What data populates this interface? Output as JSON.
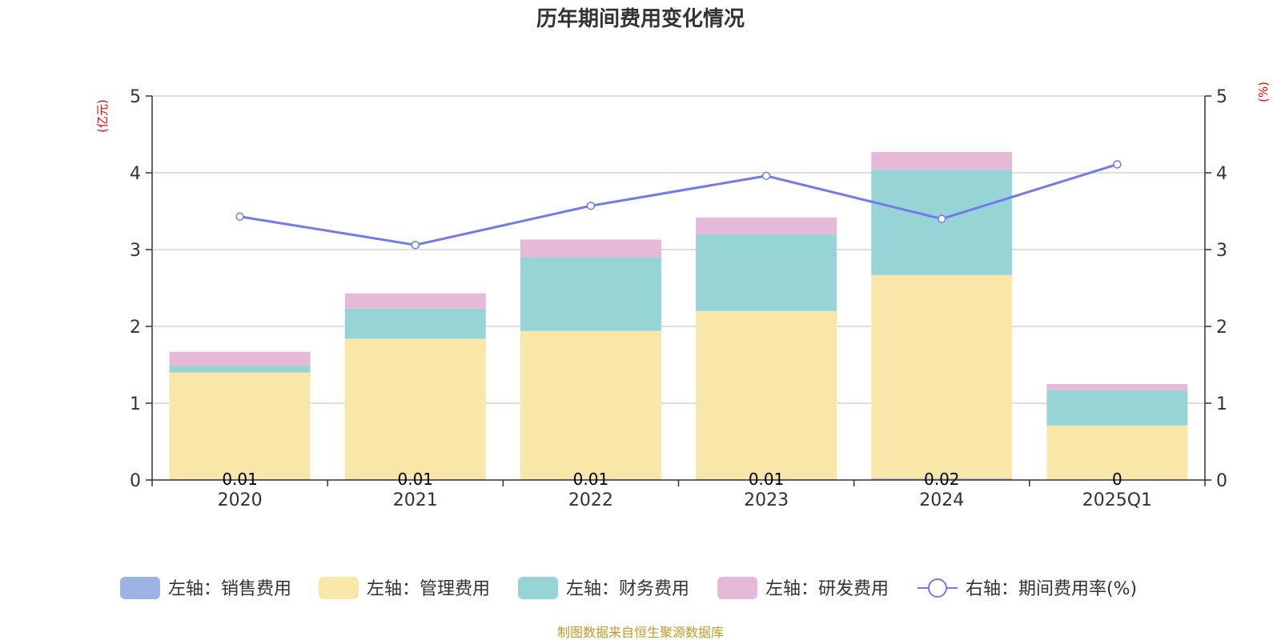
{
  "chart_data": {
    "type": "bar",
    "stacked": true,
    "title": "历年期间费用变化情况",
    "categories": [
      "2020",
      "2021",
      "2022",
      "2023",
      "2024",
      "2025Q1"
    ],
    "left_axis": {
      "unit": "(亿元)",
      "ylim": [
        0,
        5
      ],
      "ticks": [
        "0",
        "1",
        "2",
        "3",
        "4",
        "5"
      ]
    },
    "right_axis": {
      "unit": "(%)",
      "ylim": [
        0,
        5
      ],
      "ticks": [
        "0",
        "1",
        "2",
        "3",
        "4",
        "5"
      ]
    },
    "series": [
      {
        "name": "左轴：销售费用",
        "type": "bar",
        "axis": "left",
        "color": "#9db4e2",
        "values": [
          0.01,
          0.01,
          0.01,
          0.01,
          0.02,
          0
        ],
        "labels": [
          "0.01",
          "0.01",
          "0.01",
          "0.01",
          "0.02",
          "0"
        ]
      },
      {
        "name": "左轴：管理费用",
        "type": "bar",
        "axis": "left",
        "color": "#f8e7a8",
        "values": [
          1.39,
          1.83,
          1.93,
          2.19,
          2.65,
          0.71
        ]
      },
      {
        "name": "左轴：财务费用",
        "type": "bar",
        "axis": "left",
        "color": "#97d4d5",
        "values": [
          0.09,
          0.39,
          0.96,
          1.0,
          1.37,
          0.46
        ]
      },
      {
        "name": "左轴：研发费用",
        "type": "bar",
        "axis": "left",
        "color": "#e6b9d9",
        "values": [
          0.18,
          0.2,
          0.23,
          0.22,
          0.23,
          0.08
        ]
      },
      {
        "name": "右轴：期间费用率(%)",
        "type": "line",
        "axis": "right",
        "color": "#7479ec",
        "values": [
          3.43,
          3.06,
          3.57,
          3.96,
          3.4,
          4.11
        ]
      }
    ]
  },
  "source": "制图数据来自恒生聚源数据库"
}
